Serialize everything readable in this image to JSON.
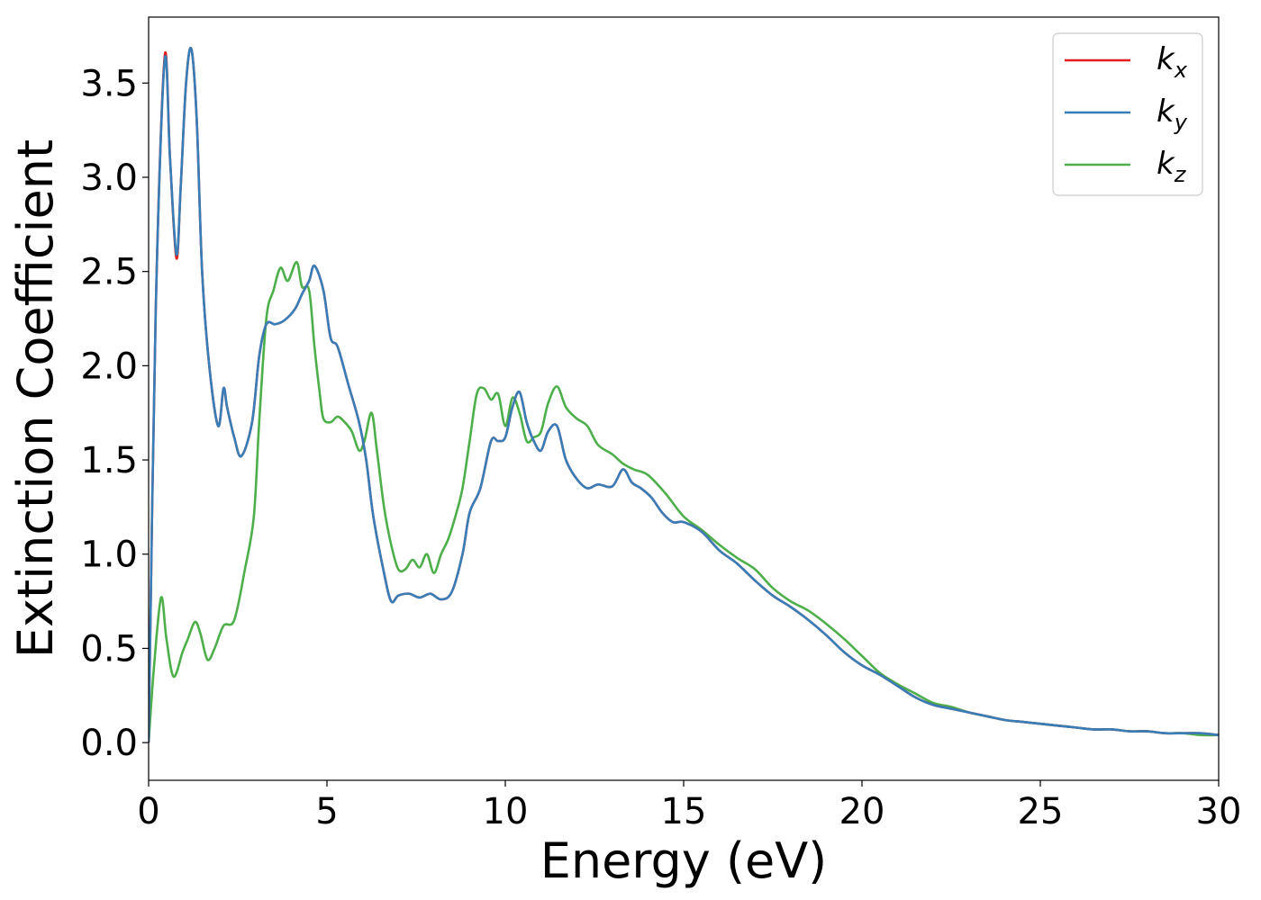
{
  "chart_data": {
    "type": "line",
    "title": "",
    "xlabel": "Energy (eV)",
    "ylabel": "Extinction Coefficient",
    "xlim": [
      0,
      30
    ],
    "ylim": [
      -0.2,
      3.85
    ],
    "xticks": [
      "0",
      "5",
      "10",
      "15",
      "20",
      "25",
      "30"
    ],
    "yticks": [
      "0.0",
      "0.5",
      "1.0",
      "1.5",
      "2.0",
      "2.5",
      "3.0",
      "3.5"
    ],
    "grid": false,
    "legend_position": "top-right",
    "series": [
      {
        "name": "k_x",
        "legend_main": "k",
        "legend_sub": "x",
        "color": "#e41a1c",
        "x": [
          0.0,
          0.2,
          0.45,
          0.6,
          0.78,
          0.9,
          1.05,
          1.2,
          1.35,
          1.5,
          1.7,
          1.95,
          2.1,
          2.2,
          2.4,
          2.6,
          2.9,
          3.1,
          3.3,
          3.55,
          3.8,
          4.1,
          4.3,
          4.5,
          4.65,
          4.9,
          5.1,
          5.3,
          5.6,
          5.9,
          6.1,
          6.3,
          6.6,
          6.8,
          7.0,
          7.3,
          7.6,
          7.9,
          8.2,
          8.5,
          8.8,
          9.0,
          9.3,
          9.6,
          9.8,
          10.0,
          10.2,
          10.4,
          10.6,
          10.8,
          11.0,
          11.2,
          11.45,
          11.7,
          12.0,
          12.3,
          12.6,
          13.0,
          13.3,
          13.55,
          13.8,
          14.1,
          14.4,
          14.7,
          15.0,
          15.5,
          16.0,
          16.5,
          17.0,
          17.5,
          18.0,
          18.5,
          19.0,
          19.5,
          20.0,
          20.5,
          21.0,
          21.5,
          22.0,
          22.5,
          23.0,
          23.5,
          24.0,
          24.5,
          25.0,
          25.5,
          26.0,
          26.5,
          27.0,
          27.5,
          28.0,
          28.5,
          29.0,
          29.5,
          30.0
        ],
        "y": [
          0.0,
          2.3,
          3.64,
          3.1,
          2.57,
          2.95,
          3.5,
          3.68,
          3.3,
          2.5,
          2.0,
          1.68,
          1.88,
          1.78,
          1.62,
          1.52,
          1.7,
          2.05,
          2.22,
          2.22,
          2.24,
          2.3,
          2.38,
          2.45,
          2.53,
          2.4,
          2.15,
          2.1,
          1.9,
          1.7,
          1.5,
          1.2,
          0.9,
          0.75,
          0.78,
          0.79,
          0.77,
          0.79,
          0.76,
          0.8,
          1.0,
          1.22,
          1.35,
          1.6,
          1.6,
          1.62,
          1.78,
          1.86,
          1.7,
          1.6,
          1.55,
          1.65,
          1.68,
          1.5,
          1.4,
          1.35,
          1.37,
          1.36,
          1.45,
          1.38,
          1.35,
          1.3,
          1.22,
          1.17,
          1.17,
          1.12,
          1.02,
          0.95,
          0.86,
          0.78,
          0.72,
          0.65,
          0.57,
          0.48,
          0.41,
          0.36,
          0.3,
          0.24,
          0.2,
          0.18,
          0.16,
          0.14,
          0.12,
          0.11,
          0.1,
          0.09,
          0.08,
          0.07,
          0.07,
          0.06,
          0.06,
          0.05,
          0.05,
          0.05,
          0.04
        ]
      },
      {
        "name": "k_y",
        "legend_main": "k",
        "legend_sub": "y",
        "color": "#377eb8",
        "x": [
          0.0,
          0.2,
          0.45,
          0.6,
          0.78,
          0.9,
          1.05,
          1.2,
          1.35,
          1.5,
          1.7,
          1.95,
          2.1,
          2.2,
          2.4,
          2.6,
          2.9,
          3.1,
          3.3,
          3.55,
          3.8,
          4.1,
          4.3,
          4.5,
          4.65,
          4.9,
          5.1,
          5.3,
          5.6,
          5.9,
          6.1,
          6.3,
          6.6,
          6.8,
          7.0,
          7.3,
          7.6,
          7.9,
          8.2,
          8.5,
          8.8,
          9.0,
          9.3,
          9.6,
          9.8,
          10.0,
          10.2,
          10.4,
          10.6,
          10.8,
          11.0,
          11.2,
          11.45,
          11.7,
          12.0,
          12.3,
          12.6,
          13.0,
          13.3,
          13.55,
          13.8,
          14.1,
          14.4,
          14.7,
          15.0,
          15.5,
          16.0,
          16.5,
          17.0,
          17.5,
          18.0,
          18.5,
          19.0,
          19.5,
          20.0,
          20.5,
          21.0,
          21.5,
          22.0,
          22.5,
          23.0,
          23.5,
          24.0,
          24.5,
          25.0,
          25.5,
          26.0,
          26.5,
          27.0,
          27.5,
          28.0,
          28.5,
          29.0,
          29.5,
          30.0
        ],
        "y": [
          0.0,
          2.3,
          3.62,
          3.1,
          2.59,
          2.95,
          3.5,
          3.68,
          3.3,
          2.5,
          2.0,
          1.68,
          1.88,
          1.78,
          1.62,
          1.52,
          1.7,
          2.05,
          2.22,
          2.22,
          2.24,
          2.3,
          2.38,
          2.45,
          2.53,
          2.4,
          2.15,
          2.1,
          1.9,
          1.7,
          1.5,
          1.2,
          0.9,
          0.75,
          0.78,
          0.79,
          0.77,
          0.79,
          0.76,
          0.8,
          1.0,
          1.22,
          1.35,
          1.6,
          1.6,
          1.62,
          1.78,
          1.86,
          1.7,
          1.6,
          1.55,
          1.65,
          1.68,
          1.5,
          1.4,
          1.35,
          1.37,
          1.36,
          1.45,
          1.38,
          1.35,
          1.3,
          1.22,
          1.17,
          1.17,
          1.12,
          1.02,
          0.95,
          0.86,
          0.78,
          0.72,
          0.65,
          0.57,
          0.48,
          0.41,
          0.36,
          0.3,
          0.24,
          0.2,
          0.18,
          0.16,
          0.14,
          0.12,
          0.11,
          0.1,
          0.09,
          0.08,
          0.07,
          0.07,
          0.06,
          0.06,
          0.05,
          0.05,
          0.05,
          0.04
        ]
      },
      {
        "name": "k_z",
        "legend_main": "k",
        "legend_sub": "z",
        "color": "#4daf4a",
        "x": [
          0.0,
          0.15,
          0.35,
          0.5,
          0.7,
          0.95,
          1.1,
          1.3,
          1.45,
          1.65,
          1.85,
          2.1,
          2.4,
          2.7,
          2.95,
          3.1,
          3.3,
          3.5,
          3.7,
          3.9,
          4.15,
          4.3,
          4.5,
          4.65,
          4.8,
          4.9,
          5.1,
          5.3,
          5.5,
          5.7,
          5.9,
          6.05,
          6.25,
          6.4,
          6.6,
          6.8,
          7.0,
          7.2,
          7.4,
          7.6,
          7.8,
          8.0,
          8.2,
          8.4,
          8.6,
          8.8,
          9.0,
          9.2,
          9.4,
          9.6,
          9.8,
          10.0,
          10.2,
          10.4,
          10.6,
          10.8,
          11.0,
          11.2,
          11.45,
          11.7,
          12.0,
          12.3,
          12.6,
          13.0,
          13.3,
          13.6,
          14.0,
          14.5,
          15.0,
          15.5,
          16.0,
          16.5,
          17.0,
          17.5,
          18.0,
          18.5,
          19.0,
          19.5,
          20.0,
          20.5,
          21.0,
          21.5,
          22.0,
          22.5,
          23.0,
          23.5,
          24.0,
          24.5,
          25.0,
          25.5,
          26.0,
          26.5,
          27.0,
          27.5,
          28.0,
          28.5,
          29.0,
          29.5,
          30.0
        ],
        "y": [
          0.0,
          0.4,
          0.77,
          0.55,
          0.35,
          0.48,
          0.55,
          0.64,
          0.58,
          0.44,
          0.5,
          0.62,
          0.65,
          0.92,
          1.2,
          1.7,
          2.25,
          2.4,
          2.52,
          2.45,
          2.55,
          2.42,
          2.4,
          2.1,
          1.85,
          1.72,
          1.7,
          1.73,
          1.7,
          1.65,
          1.55,
          1.6,
          1.75,
          1.55,
          1.25,
          1.05,
          0.92,
          0.92,
          0.97,
          0.93,
          1.0,
          0.9,
          1.0,
          1.08,
          1.2,
          1.35,
          1.6,
          1.85,
          1.88,
          1.82,
          1.85,
          1.68,
          1.83,
          1.75,
          1.6,
          1.62,
          1.65,
          1.8,
          1.89,
          1.78,
          1.72,
          1.68,
          1.58,
          1.53,
          1.48,
          1.45,
          1.42,
          1.32,
          1.2,
          1.13,
          1.05,
          0.98,
          0.92,
          0.82,
          0.75,
          0.7,
          0.63,
          0.55,
          0.46,
          0.37,
          0.31,
          0.26,
          0.21,
          0.19,
          0.16,
          0.14,
          0.12,
          0.11,
          0.1,
          0.09,
          0.08,
          0.07,
          0.07,
          0.06,
          0.06,
          0.05,
          0.05,
          0.04,
          0.04
        ]
      }
    ]
  }
}
